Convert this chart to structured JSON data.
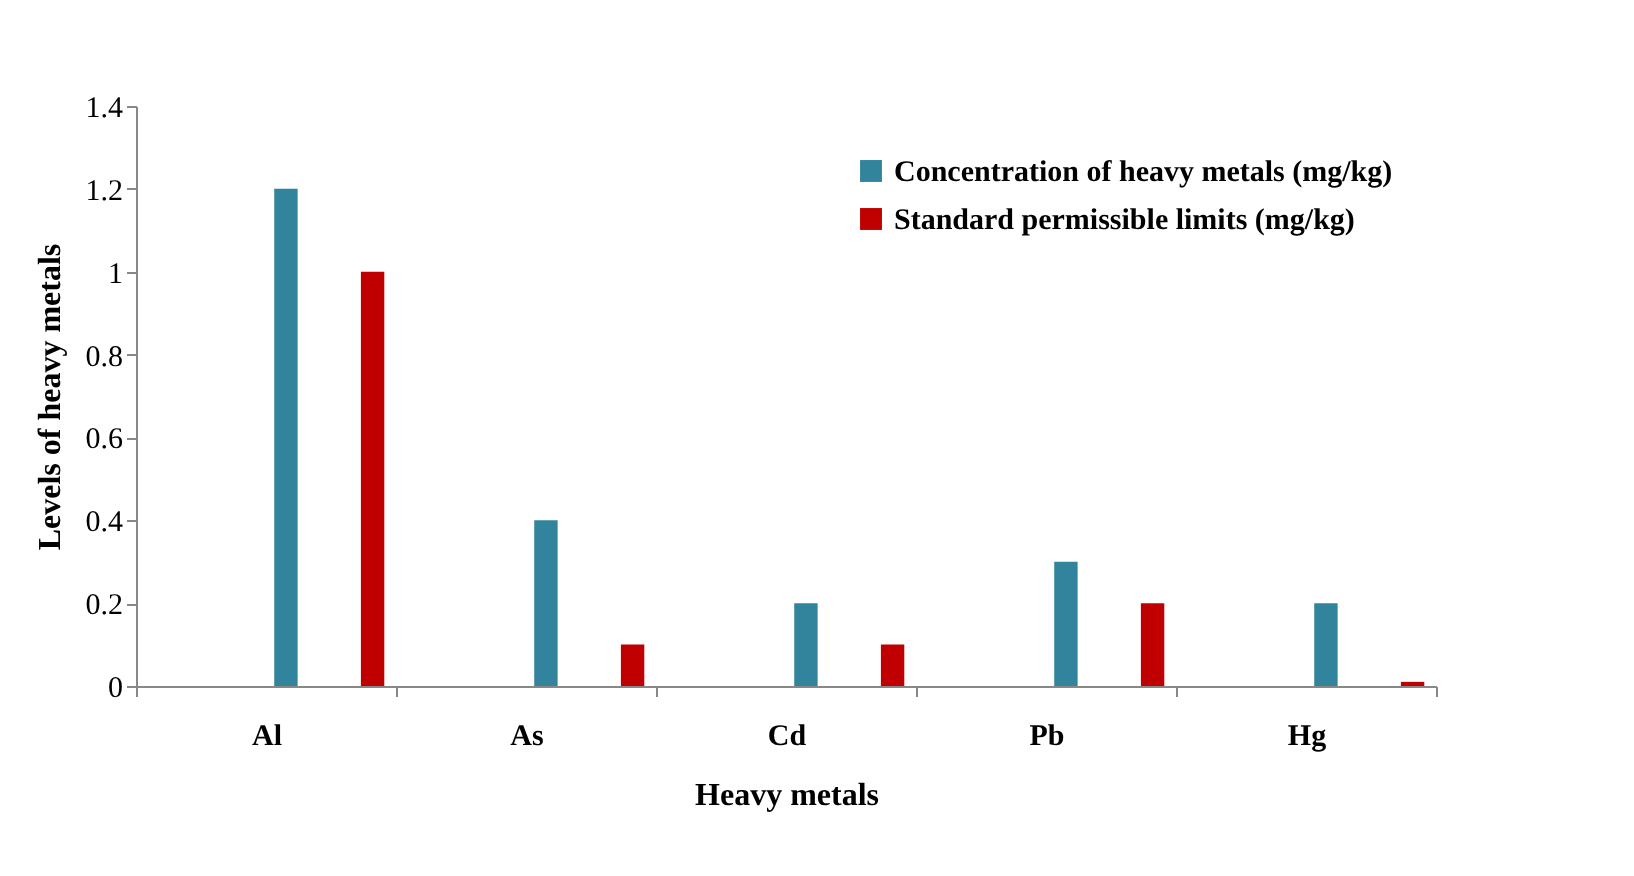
{
  "chart_data": {
    "type": "bar",
    "xlabel": "Heavy metals",
    "ylabel": "Levels of heavy metals",
    "categories": [
      "Al",
      "As",
      "Cd",
      "Pb",
      "Hg"
    ],
    "series": [
      {
        "name": "Concentration of heavy metals (mg/kg)",
        "color": "#31849b",
        "values": [
          1.2,
          0.4,
          0.2,
          0.3,
          0.2
        ]
      },
      {
        "name": "Standard permissible limits (mg/kg)",
        "color": "#c00000",
        "values": [
          1.0,
          0.1,
          0.1,
          0.2,
          0.01
        ]
      }
    ],
    "ylim": [
      0,
      1.4
    ],
    "yticks": [
      0,
      0.2,
      0.4,
      0.6,
      0.8,
      1,
      1.2,
      1.4
    ],
    "grid": false,
    "legend": "top right"
  }
}
